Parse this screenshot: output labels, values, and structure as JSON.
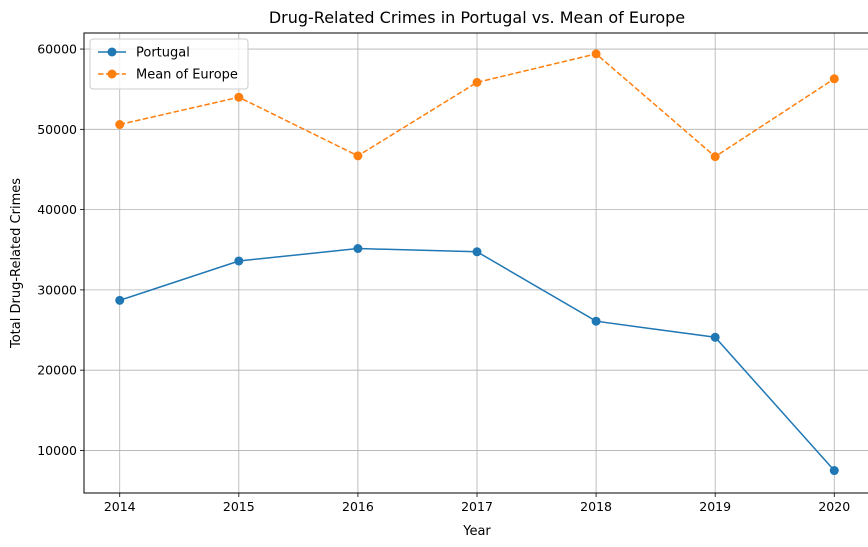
{
  "chart_data": {
    "type": "line",
    "title": "Drug-Related Crimes in Portugal vs. Mean of Europe",
    "xlabel": "Year",
    "ylabel": "Total Drug-Related Crimes",
    "x": [
      2014,
      2015,
      2016,
      2017,
      2018,
      2019,
      2020
    ],
    "xlim": [
      2013.7,
      2020.3
    ],
    "ylim": [
      4700,
      62000
    ],
    "yticks": [
      10000,
      20000,
      30000,
      40000,
      50000,
      60000
    ],
    "grid": true,
    "legend_position": "top-left",
    "series": [
      {
        "name": "Portugal",
        "color": "#1f77b4",
        "style": "solid",
        "marker": "circle",
        "values": [
          28700,
          33600,
          35150,
          34750,
          26100,
          24100,
          7500
        ]
      },
      {
        "name": "Mean of Europe",
        "color": "#ff7f0e",
        "style": "dashed",
        "marker": "circle",
        "values": [
          50600,
          54000,
          46700,
          55850,
          59400,
          46600,
          56300
        ]
      }
    ]
  }
}
